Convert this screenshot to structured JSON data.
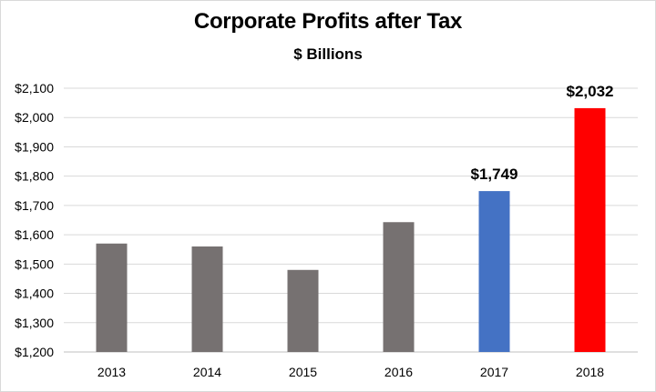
{
  "chart_data": {
    "type": "bar",
    "title": "Corporate Profits after Tax",
    "subtitle": "$ Billions",
    "categories": [
      "2013",
      "2014",
      "2015",
      "2016",
      "2017",
      "2018"
    ],
    "values": [
      1570,
      1560,
      1480,
      1643,
      1749,
      2032
    ],
    "bar_colors": [
      "#767171",
      "#767171",
      "#767171",
      "#767171",
      "#4472C4",
      "#FF0000"
    ],
    "data_labels": [
      "",
      "",
      "",
      "",
      "$1,749",
      "$2,032"
    ],
    "ylim": [
      1200,
      2100
    ],
    "y_ticks": [
      1200,
      1300,
      1400,
      1500,
      1600,
      1700,
      1800,
      1900,
      2000,
      2100
    ],
    "y_tick_labels": [
      "$1,200",
      "$1,300",
      "$1,400",
      "$1,500",
      "$1,600",
      "$1,700",
      "$1,800",
      "$1,900",
      "$2,000",
      "$2,100"
    ],
    "grid": true,
    "legend": "none",
    "xlabel": "",
    "ylabel": ""
  }
}
